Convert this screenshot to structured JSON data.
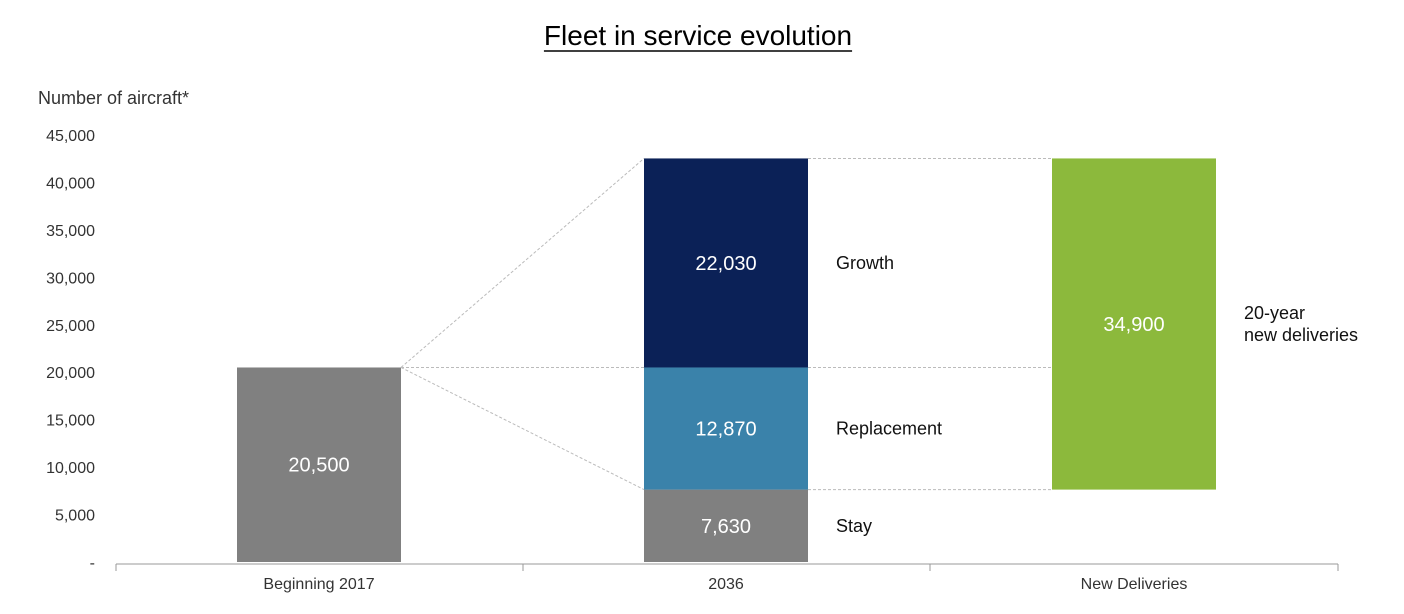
{
  "chart_data": {
    "type": "bar",
    "title": "Fleet in service evolution",
    "ylabel": "Number of aircraft*",
    "xlabel": "",
    "ylim": [
      0,
      45000
    ],
    "yticks": [
      0,
      5000,
      10000,
      15000,
      20000,
      25000,
      30000,
      35000,
      40000,
      45000
    ],
    "ytick_labels": [
      "-",
      "5,000",
      "10,000",
      "15,000",
      "20,000",
      "25,000",
      "30,000",
      "35,000",
      "40,000",
      "45,000"
    ],
    "categories": [
      "Beginning 2017",
      "2036",
      "New Deliveries"
    ],
    "grid": false,
    "legend": "none",
    "bars": [
      {
        "category": "Beginning 2017",
        "segments": [
          {
            "label": "",
            "value": 20500,
            "value_label": "20,500",
            "base": 0,
            "color": "#808080"
          }
        ]
      },
      {
        "category": "2036",
        "segments": [
          {
            "label": "Stay",
            "value": 7630,
            "value_label": "7,630",
            "base": 0,
            "color": "#808080"
          },
          {
            "label": "Replacement",
            "value": 12870,
            "value_label": "12,870",
            "base": 7630,
            "color": "#3a82aa"
          },
          {
            "label": "Growth",
            "value": 22030,
            "value_label": "22,030",
            "base": 20500,
            "color": "#0b2157"
          }
        ]
      },
      {
        "category": "New Deliveries",
        "segments": [
          {
            "label": "20-year\nnew deliveries",
            "value": 34900,
            "value_label": "34,900",
            "base": 7630,
            "color": "#8cb93c"
          }
        ]
      }
    ],
    "connector_color": "#bbbbbb",
    "axis_color": "#999999"
  }
}
